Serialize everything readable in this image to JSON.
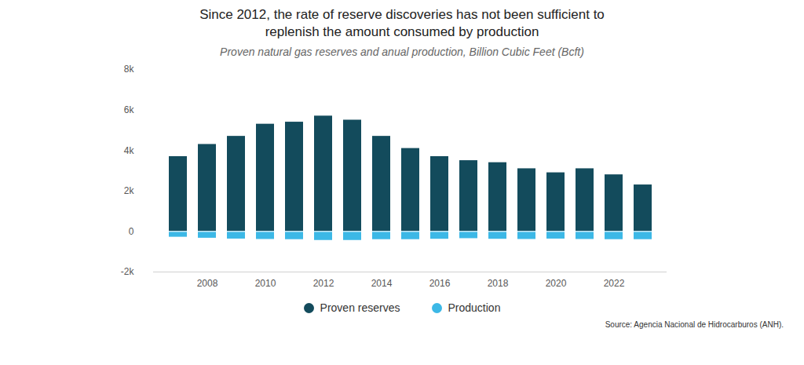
{
  "chart_data": {
    "type": "bar",
    "title": "Since 2012, the rate of reserve discoveries has not been sufficient to replenish the amount consumed by production",
    "subtitle": "Proven natural gas reserves and anual production, Billion Cubic Feet (Bcft)",
    "caption": "Source: Agencia Nacional de Hidrocarburos (ANH).",
    "categories": [
      null,
      "2008",
      null,
      "2010",
      null,
      "2012",
      null,
      "2014",
      null,
      "2016",
      null,
      "2018",
      null,
      "2020",
      null,
      "2022",
      null
    ],
    "series": [
      {
        "name": "Proven reserves",
        "color": "#134b5c",
        "values": [
          3700,
          4300,
          4700,
          5300,
          5400,
          5700,
          5500,
          4700,
          4100,
          3700,
          3500,
          3400,
          3100,
          2900,
          3100,
          2800,
          2300
        ]
      },
      {
        "name": "Production",
        "color": "#3cb8e6",
        "values": [
          -280,
          -330,
          -370,
          -390,
          -400,
          -440,
          -440,
          -400,
          -400,
          -380,
          -350,
          -380,
          -390,
          -370,
          -390,
          -400,
          -400
        ]
      }
    ],
    "ylim": [
      -2000,
      8000
    ],
    "yticks": [
      {
        "value": -2000,
        "label": "-2k"
      },
      0,
      {
        "value": 2000,
        "label": "2k"
      },
      {
        "value": 4000,
        "label": "4k"
      },
      {
        "value": 6000,
        "label": "6k"
      },
      {
        "value": 8000,
        "label": "8k"
      }
    ],
    "legend": "bottom",
    "grid": false
  }
}
